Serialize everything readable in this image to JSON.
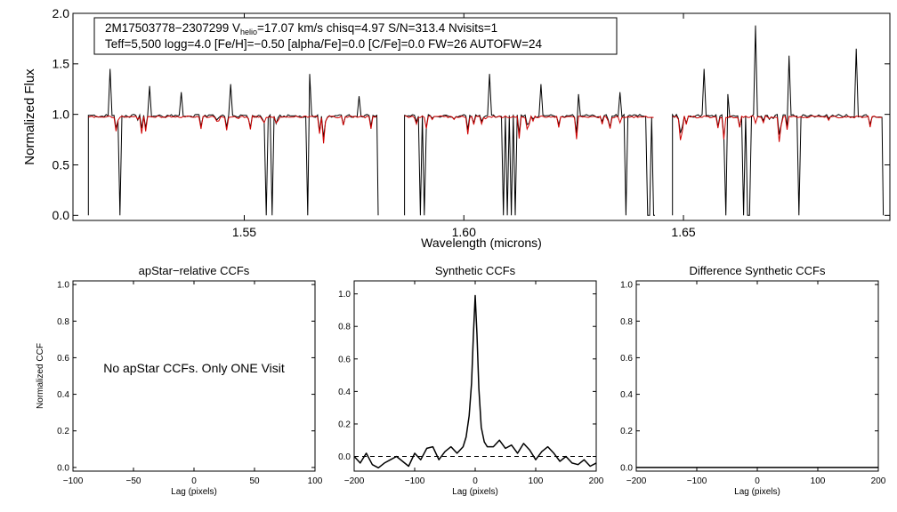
{
  "figure": {
    "header_line1_prefix": "2M17503778−2307299  V",
    "header_line1_sub": "helio",
    "header_line1_suffix": "=17.07 km/s  chisq=4.97  S/N=313.4  Nvisits=1",
    "header_line2": "Teff=5,500 logg=4.0 [Fe/H]=−0.50 [alpha/Fe]=0.0 [C/Fe]=0.0 FW=26 AUTOFW=24"
  },
  "chart_data": [
    {
      "id": "spectrum",
      "type": "line",
      "xlabel": "Wavelength (microns)",
      "ylabel": "Normalized Flux",
      "xlim": [
        1.511,
        1.697
      ],
      "ylim": [
        -0.05,
        2.0
      ],
      "xticks": [
        {
          "v": 1.55,
          "label": "1.55"
        },
        {
          "v": 1.6,
          "label": "1.60"
        },
        {
          "v": 1.65,
          "label": "1.65"
        }
      ],
      "yticks": [
        {
          "v": 0.0,
          "label": "0.0"
        },
        {
          "v": 0.5,
          "label": "0.5"
        },
        {
          "v": 1.0,
          "label": "1.0"
        },
        {
          "v": 1.5,
          "label": "1.5"
        },
        {
          "v": 2.0,
          "label": "2.0"
        }
      ],
      "chips": [
        [
          1.5145,
          1.5805
        ],
        [
          1.5865,
          1.6435
        ],
        [
          1.6475,
          1.6955
        ]
      ],
      "series": [
        {
          "key": "observed",
          "color": "#000000"
        },
        {
          "key": "model",
          "color": "#d00000"
        }
      ],
      "spikes_up": [
        [
          1.5195,
          1.45
        ],
        [
          1.5285,
          1.28
        ],
        [
          1.5355,
          1.22
        ],
        [
          1.5468,
          1.3
        ],
        [
          1.5649,
          1.4
        ],
        [
          1.5761,
          1.18
        ],
        [
          1.6058,
          1.4
        ],
        [
          1.6118,
          1.35
        ],
        [
          1.6175,
          1.3
        ],
        [
          1.6262,
          1.2
        ],
        [
          1.6355,
          1.22
        ],
        [
          1.6547,
          1.45
        ],
        [
          1.6603,
          1.2
        ],
        [
          1.6662,
          1.88
        ],
        [
          1.6742,
          1.58
        ],
        [
          1.6895,
          1.65
        ]
      ],
      "drops_full": [
        1.5218,
        1.5552,
        1.5565,
        1.5644,
        1.5646,
        1.5903,
        1.5911,
        1.6092,
        1.6101,
        1.6109,
        1.6117,
        1.6368,
        1.6417,
        1.6425,
        1.6431,
        1.6598,
        1.6635,
        1.6645,
        1.6651,
        1.6765
      ]
    },
    {
      "id": "apstar_ccf",
      "type": "line",
      "title": "apStar−relative CCFs",
      "xlabel": "Lag (pixels)",
      "ylabel": "Normalized CCF",
      "xlim": [
        -100,
        100
      ],
      "ylim": [
        -0.02,
        1.02
      ],
      "xticks": [
        {
          "v": -100,
          "label": "−100"
        },
        {
          "v": -50,
          "label": "−50"
        },
        {
          "v": 0,
          "label": "0"
        },
        {
          "v": 50,
          "label": "50"
        },
        {
          "v": 100,
          "label": "100"
        }
      ],
      "yticks": [
        {
          "v": 0,
          "label": "0.0"
        },
        {
          "v": 0.2,
          "label": "0.2"
        },
        {
          "v": 0.4,
          "label": "0.4"
        },
        {
          "v": 0.6,
          "label": "0.6"
        },
        {
          "v": 0.8,
          "label": "0.8"
        },
        {
          "v": 1.0,
          "label": "1.0"
        }
      ],
      "annotation": "No apStar CCFs.  Only ONE Visit"
    },
    {
      "id": "synthetic_ccf",
      "type": "line",
      "title": "Synthetic CCFs",
      "xlabel": "Lag (pixels)",
      "xlim": [
        -200,
        200
      ],
      "ylim": [
        -0.09,
        1.08
      ],
      "xticks": [
        {
          "v": -200,
          "label": "−200"
        },
        {
          "v": -100,
          "label": "−100"
        },
        {
          "v": 0,
          "label": "0"
        },
        {
          "v": 100,
          "label": "100"
        },
        {
          "v": 200,
          "label": "200"
        }
      ],
      "yticks": [
        {
          "v": 0,
          "label": "0.0"
        },
        {
          "v": 0.2,
          "label": "0.2"
        },
        {
          "v": 0.4,
          "label": "0.4"
        },
        {
          "v": 0.6,
          "label": "0.6"
        },
        {
          "v": 0.8,
          "label": "0.8"
        },
        {
          "v": 1.0,
          "label": "1.0"
        }
      ],
      "zero_line_dashed": true,
      "x": [
        -200,
        -190,
        -180,
        -170,
        -160,
        -150,
        -140,
        -130,
        -120,
        -110,
        -100,
        -90,
        -80,
        -70,
        -60,
        -50,
        -40,
        -30,
        -20,
        -15,
        -10,
        -6,
        -3,
        0,
        3,
        6,
        10,
        15,
        20,
        30,
        40,
        50,
        60,
        70,
        80,
        90,
        100,
        110,
        120,
        130,
        140,
        150,
        160,
        170,
        180,
        190,
        200
      ],
      "y": [
        0.0,
        -0.04,
        0.02,
        -0.05,
        -0.07,
        -0.04,
        -0.02,
        0.0,
        -0.03,
        -0.06,
        0.02,
        -0.02,
        0.05,
        0.06,
        -0.02,
        0.03,
        0.06,
        0.02,
        0.06,
        0.12,
        0.25,
        0.45,
        0.75,
        0.99,
        0.75,
        0.42,
        0.18,
        0.09,
        0.06,
        0.06,
        0.1,
        0.05,
        0.07,
        0.02,
        0.08,
        0.04,
        -0.02,
        0.03,
        0.06,
        0.02,
        -0.03,
        0.0,
        -0.04,
        -0.05,
        -0.02,
        -0.06,
        -0.04
      ]
    },
    {
      "id": "difference_ccf",
      "type": "line",
      "title": "Difference Synthetic CCFs",
      "xlabel": "Lag (pixels)",
      "xlim": [
        -200,
        200
      ],
      "ylim": [
        -0.02,
        1.02
      ],
      "xticks": [
        {
          "v": -200,
          "label": "−200"
        },
        {
          "v": -100,
          "label": "−100"
        },
        {
          "v": 0,
          "label": "0"
        },
        {
          "v": 100,
          "label": "100"
        },
        {
          "v": 200,
          "label": "200"
        }
      ],
      "yticks": [
        {
          "v": 0,
          "label": "0.0"
        },
        {
          "v": 0.2,
          "label": "0.2"
        },
        {
          "v": 0.4,
          "label": "0.4"
        },
        {
          "v": 0.6,
          "label": "0.6"
        },
        {
          "v": 0.8,
          "label": "0.8"
        },
        {
          "v": 1.0,
          "label": "1.0"
        }
      ],
      "x": [
        -200,
        200
      ],
      "y": [
        0.0,
        0.0
      ]
    }
  ]
}
